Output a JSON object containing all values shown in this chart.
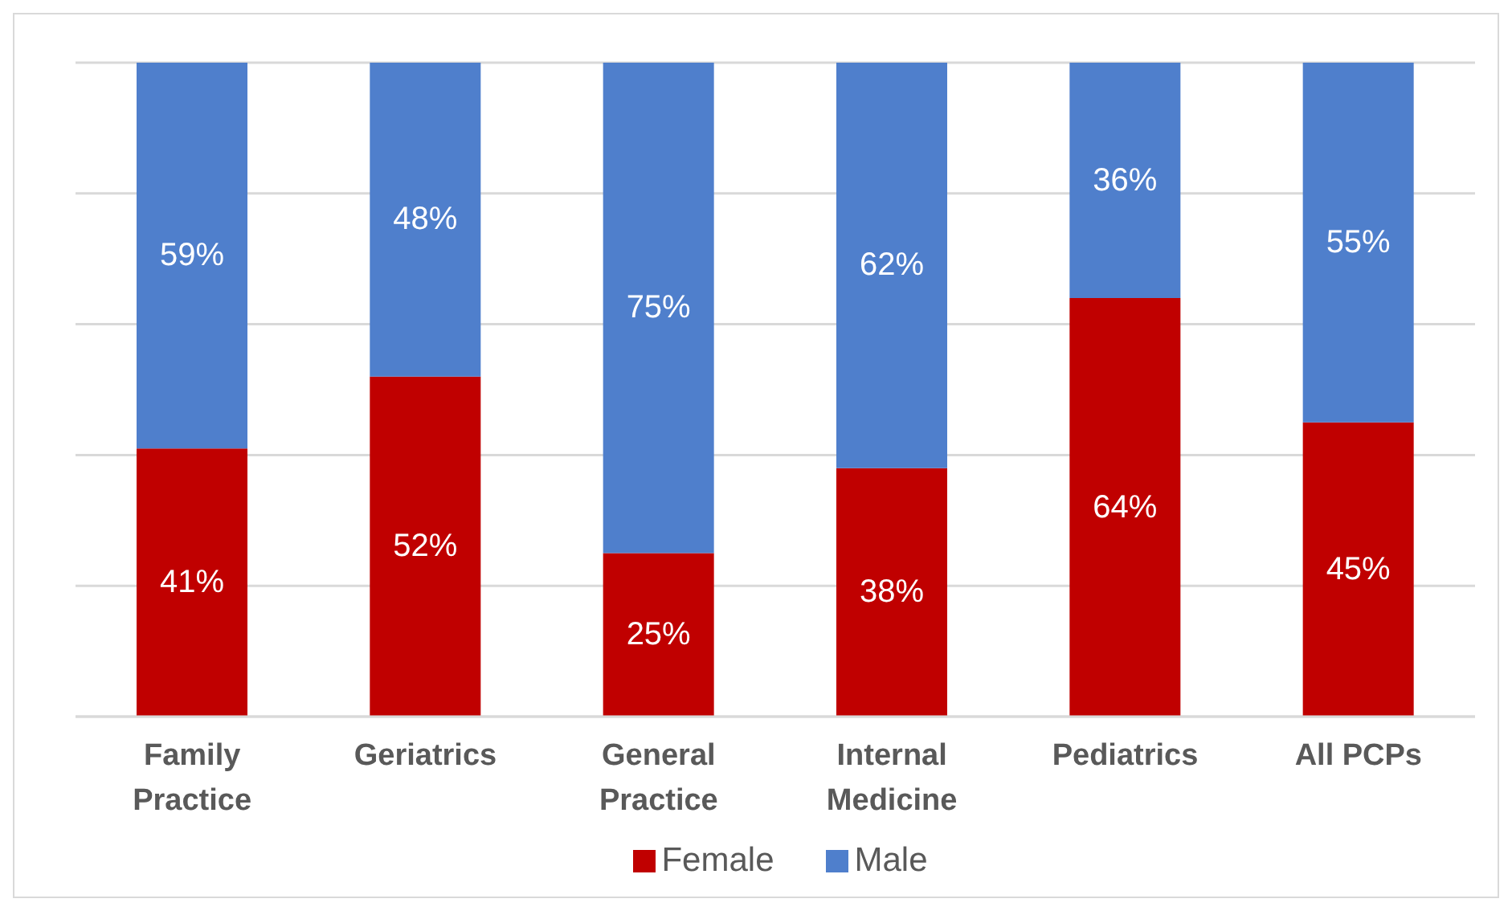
{
  "chart_data": {
    "type": "bar",
    "stacked": true,
    "categories": [
      "Family Practice",
      "Geriatrics",
      "General Practice",
      "Internal Medicine",
      "Pediatrics",
      "All PCPs"
    ],
    "series": [
      {
        "name": "Female",
        "color": "#c00000",
        "values": [
          41,
          52,
          25,
          38,
          64,
          45
        ],
        "value_labels": [
          "41%",
          "52%",
          "25%",
          "38%",
          "64%",
          "45%"
        ]
      },
      {
        "name": "Male",
        "color": "#4f7fcc",
        "values": [
          59,
          48,
          75,
          62,
          36,
          55
        ],
        "value_labels": [
          "59%",
          "48%",
          "75%",
          "62%",
          "36%",
          "55%"
        ]
      }
    ],
    "ylim": [
      0,
      100
    ],
    "yticks": [
      {
        "value": 0,
        "label": null
      },
      {
        "value": 20,
        "label": null
      },
      {
        "value": 40,
        "label": null
      },
      {
        "value": 60,
        "label": null
      },
      {
        "value": 80,
        "label": null
      },
      {
        "value": 100,
        "label": null
      }
    ],
    "tick_labels": "x",
    "grid": "y",
    "legend": "bottom"
  }
}
